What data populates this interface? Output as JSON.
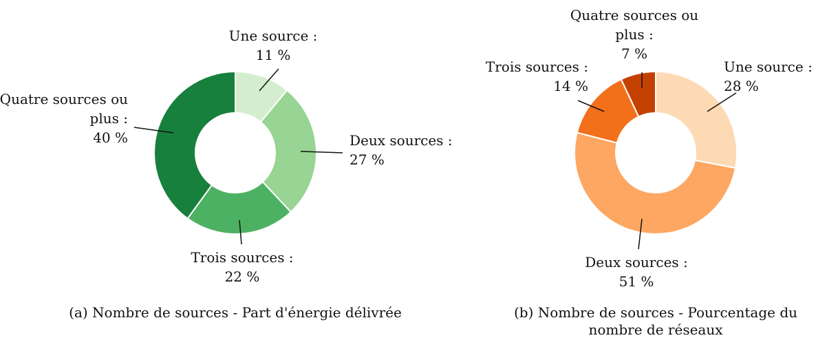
{
  "chart_data": [
    {
      "type": "pie",
      "donut": true,
      "title": "(a) Nombre de sources - Part d'énergie délivrée",
      "categories": [
        "Une source :",
        "Deux sources :",
        "Trois sources :",
        "Quatre sources ou plus :"
      ],
      "values": [
        11,
        27,
        22,
        40
      ],
      "value_labels": [
        "11 %",
        "27 %",
        "22 %",
        "40 %"
      ],
      "colors": [
        "#d4edce",
        "#98d493",
        "#4db163",
        "#17803d"
      ]
    },
    {
      "type": "pie",
      "donut": true,
      "title": "(b) Nombre de sources - Pourcentage du nombre de réseaux",
      "categories": [
        "Une source :",
        "Deux sources :",
        "Trois sources :",
        "Quatre sources ou plus :"
      ],
      "values": [
        28,
        51,
        14,
        7
      ],
      "value_labels": [
        "28 %",
        "51 %",
        "14 %",
        "7 %"
      ],
      "colors": [
        "#fdd9b4",
        "#fda762",
        "#f3701b",
        "#c54102"
      ]
    }
  ]
}
